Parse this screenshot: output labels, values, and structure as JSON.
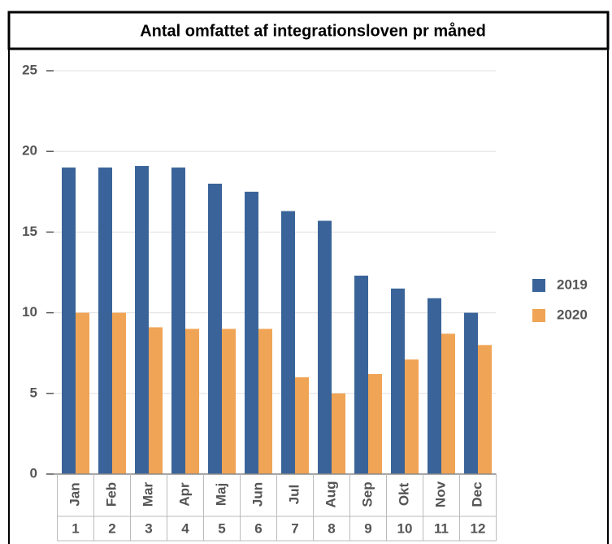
{
  "chart_data": {
    "type": "bar",
    "title": "Antal omfattet af integrationsloven pr måned",
    "categories": [
      "Jan",
      "Feb",
      "Mar",
      "Apr",
      "Maj",
      "Jun",
      "Jul",
      "Aug",
      "Sep",
      "Okt",
      "Nov",
      "Dec"
    ],
    "category_numbers": [
      1,
      2,
      3,
      4,
      5,
      6,
      7,
      8,
      9,
      10,
      11,
      12
    ],
    "series": [
      {
        "name": "2019",
        "color": "#3a6499",
        "values": [
          19,
          19,
          19.1,
          19,
          18,
          17.5,
          16.3,
          15.7,
          12.3,
          11.5,
          10.9,
          10
        ]
      },
      {
        "name": "2020",
        "color": "#f0a455",
        "values": [
          10,
          10,
          9.1,
          9,
          9,
          9,
          6,
          5,
          6.2,
          7.1,
          8.7,
          8
        ]
      }
    ],
    "ylim": [
      0,
      25
    ],
    "yticks": [
      0,
      5,
      10,
      15,
      20,
      25
    ],
    "grid": true,
    "legend": "right"
  }
}
